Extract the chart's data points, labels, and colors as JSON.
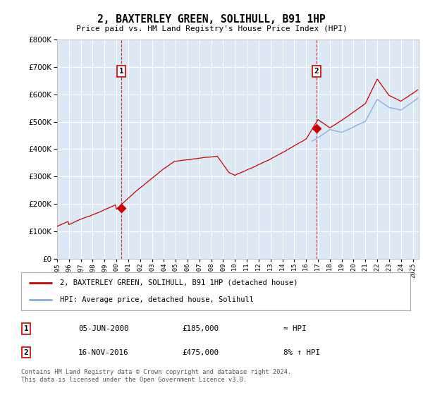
{
  "title": "2, BAXTERLEY GREEN, SOLIHULL, B91 1HP",
  "subtitle": "Price paid vs. HM Land Registry's House Price Index (HPI)",
  "ylim": [
    0,
    800000
  ],
  "yticks": [
    0,
    100000,
    200000,
    300000,
    400000,
    500000,
    600000,
    700000,
    800000
  ],
  "sale1_date_x": 2000.43,
  "sale1_price": 185000,
  "sale1_label": "1",
  "sale1_date_str": "05-JUN-2000",
  "sale1_price_str": "£185,000",
  "sale1_hpi_str": "≈ HPI",
  "sale2_date_x": 2016.88,
  "sale2_price": 475000,
  "sale2_label": "2",
  "sale2_date_str": "16-NOV-2016",
  "sale2_price_str": "£475,000",
  "sale2_hpi_str": "8% ↑ HPI",
  "line_color_property": "#cc0000",
  "line_color_hpi": "#88aadd",
  "legend_label_property": "2, BAXTERLEY GREEN, SOLIHULL, B91 1HP (detached house)",
  "legend_label_hpi": "HPI: Average price, detached house, Solihull",
  "footer": "Contains HM Land Registry data © Crown copyright and database right 2024.\nThis data is licensed under the Open Government Licence v3.0.",
  "xmin": 1995,
  "xmax": 2025.5,
  "plot_bg": "#dde8f5",
  "fig_bg": "white"
}
